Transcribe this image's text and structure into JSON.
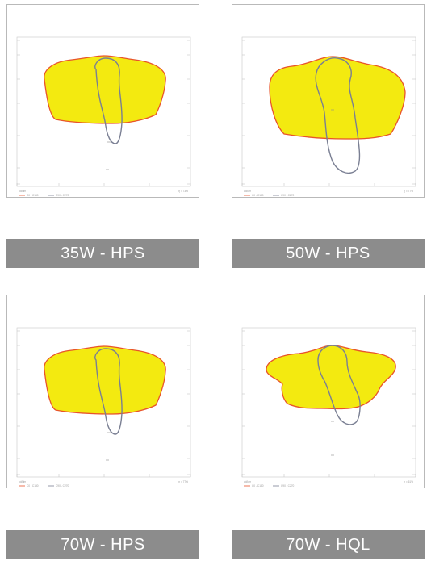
{
  "colors": {
    "fill": "#f3ea10",
    "outline_red": "#e8542a",
    "outline_blue": "#7a7f93",
    "caption_bg": "#8c8c8c",
    "frame": "#b9b9b9"
  },
  "panels": [
    {
      "caption": "35W - HPS",
      "shape": "a",
      "legend_left": "cd/klm",
      "legend_series_1": "C0 - C180",
      "legend_series_2": "C90 - C270",
      "legend_right": "η = 73%"
    },
    {
      "caption": "50W - HPS",
      "shape": "b",
      "legend_left": "cd/klm",
      "legend_series_1": "C0 - C180",
      "legend_series_2": "C90 - C270",
      "legend_right": "η = 77%"
    },
    {
      "caption": "70W - HPS",
      "shape": "a",
      "legend_left": "cd/klm",
      "legend_series_1": "C0 - C180",
      "legend_series_2": "C90 - C270",
      "legend_right": "η = 77%"
    },
    {
      "caption": "70W - HQL",
      "shape": "c",
      "legend_left": "cd/klm",
      "legend_series_1": "C0 - C180",
      "legend_series_2": "C90 - C270",
      "legend_right": "η = 61%"
    }
  ]
}
